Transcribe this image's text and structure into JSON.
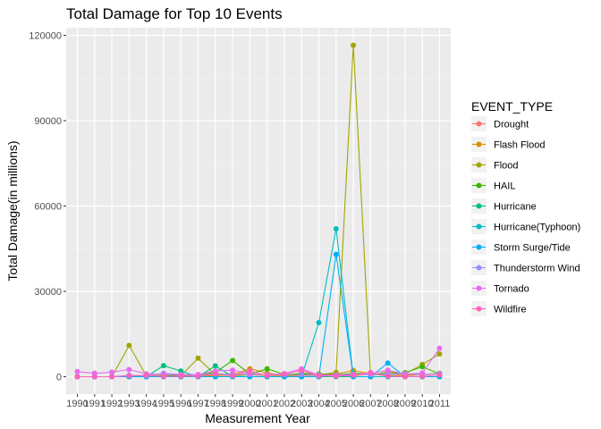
{
  "chart_data": {
    "type": "line",
    "title": "Total Damage for Top 10 Events",
    "xlabel": "Measurement Year",
    "ylabel": "Total Damage(in millions)",
    "legend_title": "EVENT_TYPE",
    "legend_position": "right",
    "grid": true,
    "ylim": [
      -4000,
      122000
    ],
    "yticks": [
      0,
      30000,
      60000,
      90000,
      120000
    ],
    "x": [
      "1990",
      "1991",
      "1992",
      "1993",
      "1994",
      "1995",
      "1996",
      "1997",
      "1998",
      "1999",
      "2000",
      "2001",
      "2002",
      "2003",
      "2004",
      "2005",
      "2006",
      "2007",
      "2008",
      "2009",
      "2010",
      "2011"
    ],
    "series": [
      {
        "name": "Drought",
        "color": "#F8766D",
        "values": [
          0,
          0,
          0,
          0,
          0,
          0,
          0,
          0,
          600,
          1100,
          700,
          500,
          300,
          200,
          150,
          150,
          300,
          900,
          350,
          300,
          800,
          1200
        ]
      },
      {
        "name": "Flash Flood",
        "color": "#D89000",
        "values": [
          0,
          0,
          0,
          0,
          0,
          200,
          300,
          300,
          300,
          700,
          2800,
          1300,
          500,
          1300,
          900,
          900,
          2200,
          1000,
          800,
          700,
          700,
          1200
        ]
      },
      {
        "name": "Flood",
        "color": "#A3A500",
        "values": [
          0,
          0,
          0,
          11000,
          300,
          400,
          300,
          6500,
          700,
          300,
          700,
          400,
          400,
          600,
          600,
          1500,
          116500,
          300,
          1800,
          1000,
          4300,
          8000
        ]
      },
      {
        "name": "HAIL",
        "color": "#39B600",
        "values": [
          0,
          0,
          0,
          0,
          500,
          300,
          600,
          500,
          1500,
          5700,
          900,
          2800,
          800,
          1000,
          900,
          700,
          1200,
          1000,
          1000,
          1400,
          3500,
          1000
        ]
      },
      {
        "name": "Hurricane",
        "color": "#00BF7D",
        "values": [
          0,
          0,
          0,
          0,
          0,
          3900,
          2000,
          0,
          3800,
          100,
          0,
          0,
          0,
          0,
          0,
          0,
          0,
          0,
          0,
          0,
          0,
          0
        ]
      },
      {
        "name": "Hurricane(Typhoon)",
        "color": "#00BFC4",
        "values": [
          0,
          0,
          0,
          0,
          0,
          0,
          0,
          0,
          0,
          0,
          0,
          0,
          0,
          0,
          19000,
          52000,
          0,
          0,
          0,
          0,
          0,
          0
        ]
      },
      {
        "name": "Storm Surge/Tide",
        "color": "#00B0F6",
        "values": [
          0,
          0,
          0,
          0,
          0,
          0,
          0,
          0,
          0,
          0,
          0,
          0,
          0,
          0,
          0,
          43000,
          0,
          0,
          4800,
          0,
          0,
          0
        ]
      },
      {
        "name": "Thunderstorm Wind",
        "color": "#9590FF",
        "values": [
          0,
          0,
          0,
          500,
          300,
          1200,
          800,
          400,
          1100,
          800,
          800,
          700,
          700,
          800,
          500,
          600,
          900,
          700,
          900,
          1100,
          700,
          1100
        ]
      },
      {
        "name": "Tornado",
        "color": "#E76BF3",
        "values": [
          1800,
          1200,
          1600,
          2500,
          1000,
          800,
          700,
          800,
          2000,
          2300,
          1000,
          700,
          1100,
          2800,
          600,
          600,
          700,
          1100,
          2300,
          900,
          1300,
          10000
        ]
      },
      {
        "name": "Wildfire",
        "color": "#FF62BC",
        "values": [
          0,
          0,
          0,
          300,
          500,
          100,
          200,
          200,
          1000,
          300,
          2100,
          300,
          900,
          2300,
          300,
          200,
          500,
          1500,
          200,
          0,
          100,
          600
        ]
      }
    ]
  }
}
